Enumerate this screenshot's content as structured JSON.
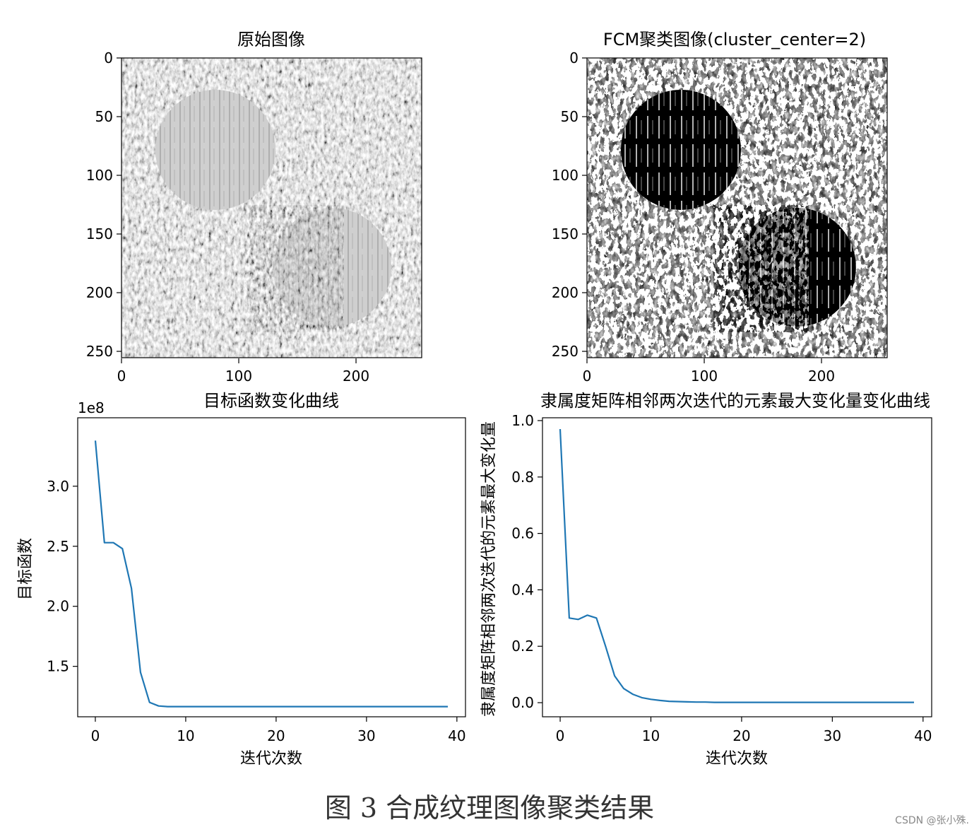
{
  "caption": "图 3  合成纹理图像聚类结果",
  "watermark": "CSDN @张小殊.",
  "colors": {
    "line": "#1f77b4",
    "wood": "#c8c8c8",
    "grass_dark": "#3a3a3a",
    "grass_light": "#b8b8b8"
  },
  "panels": {
    "original": {
      "title": "原始图像",
      "xticks": [
        "0",
        "100",
        "200"
      ],
      "yticks": [
        "0",
        "50",
        "100",
        "150",
        "200",
        "250"
      ]
    },
    "fcm": {
      "title": "FCM聚类图像(cluster_center=2)",
      "xticks": [
        "0",
        "100",
        "200"
      ],
      "yticks": [
        "0",
        "50",
        "100",
        "150",
        "200",
        "250"
      ]
    }
  },
  "chart_data": [
    {
      "type": "line",
      "title": "目标函数变化曲线",
      "xlabel": "迭代次数",
      "ylabel": "目标函数",
      "offset_text": "1e8",
      "xlim": [
        -1.95,
        40.95
      ],
      "ylim": [
        1.08,
        3.57
      ],
      "xticks": [
        0,
        10,
        20,
        30,
        40
      ],
      "yticks": [
        1.5,
        2.0,
        2.5,
        3.0
      ],
      "ytick_labels": [
        "1.5",
        "2.0",
        "2.5",
        "3.0"
      ],
      "grid": false,
      "series": [
        {
          "x": [
            0,
            1,
            2,
            3,
            4,
            5,
            6,
            7,
            8,
            9,
            10,
            11,
            12,
            13,
            14,
            15,
            16,
            17,
            18,
            19,
            20,
            21,
            22,
            23,
            24,
            25,
            26,
            27,
            28,
            29,
            30,
            31,
            32,
            33,
            34,
            35,
            36,
            37,
            38,
            39
          ],
          "y": [
            3.38,
            2.53,
            2.53,
            2.48,
            2.15,
            1.45,
            1.2,
            1.17,
            1.165,
            1.165,
            1.165,
            1.165,
            1.165,
            1.165,
            1.165,
            1.165,
            1.165,
            1.165,
            1.165,
            1.165,
            1.165,
            1.165,
            1.165,
            1.165,
            1.165,
            1.165,
            1.165,
            1.165,
            1.165,
            1.165,
            1.165,
            1.165,
            1.165,
            1.165,
            1.165,
            1.165,
            1.165,
            1.165,
            1.165,
            1.165
          ]
        }
      ]
    },
    {
      "type": "line",
      "title": "隶属度矩阵相邻两次迭代的元素最大变化量变化曲线",
      "xlabel": "迭代次数",
      "ylabel": "隶属度矩阵相邻两次迭代的元素最大变化量",
      "xlim": [
        -1.95,
        40.95
      ],
      "ylim": [
        -0.05,
        1.01
      ],
      "xticks": [
        0,
        10,
        20,
        30,
        40
      ],
      "yticks": [
        0.0,
        0.2,
        0.4,
        0.6,
        0.8,
        1.0
      ],
      "ytick_labels": [
        "0.0",
        "0.2",
        "0.4",
        "0.6",
        "0.8",
        "1.0"
      ],
      "grid": false,
      "series": [
        {
          "x": [
            0,
            1,
            2,
            3,
            4,
            5,
            6,
            7,
            8,
            9,
            10,
            11,
            12,
            13,
            14,
            15,
            16,
            17,
            18,
            19,
            20,
            21,
            22,
            23,
            24,
            25,
            26,
            27,
            28,
            29,
            30,
            31,
            32,
            33,
            34,
            35,
            36,
            37,
            38,
            39
          ],
          "y": [
            0.97,
            0.3,
            0.295,
            0.31,
            0.3,
            0.2,
            0.095,
            0.05,
            0.03,
            0.018,
            0.012,
            0.008,
            0.005,
            0.004,
            0.003,
            0.002,
            0.002,
            0.001,
            0.001,
            0.001,
            0.001,
            0.001,
            0.001,
            0.001,
            0.001,
            0.001,
            0.001,
            0.001,
            0.001,
            0.001,
            0.001,
            0.001,
            0.001,
            0.001,
            0.001,
            0.001,
            0.001,
            0.001,
            0.001,
            0.001
          ]
        }
      ]
    }
  ]
}
